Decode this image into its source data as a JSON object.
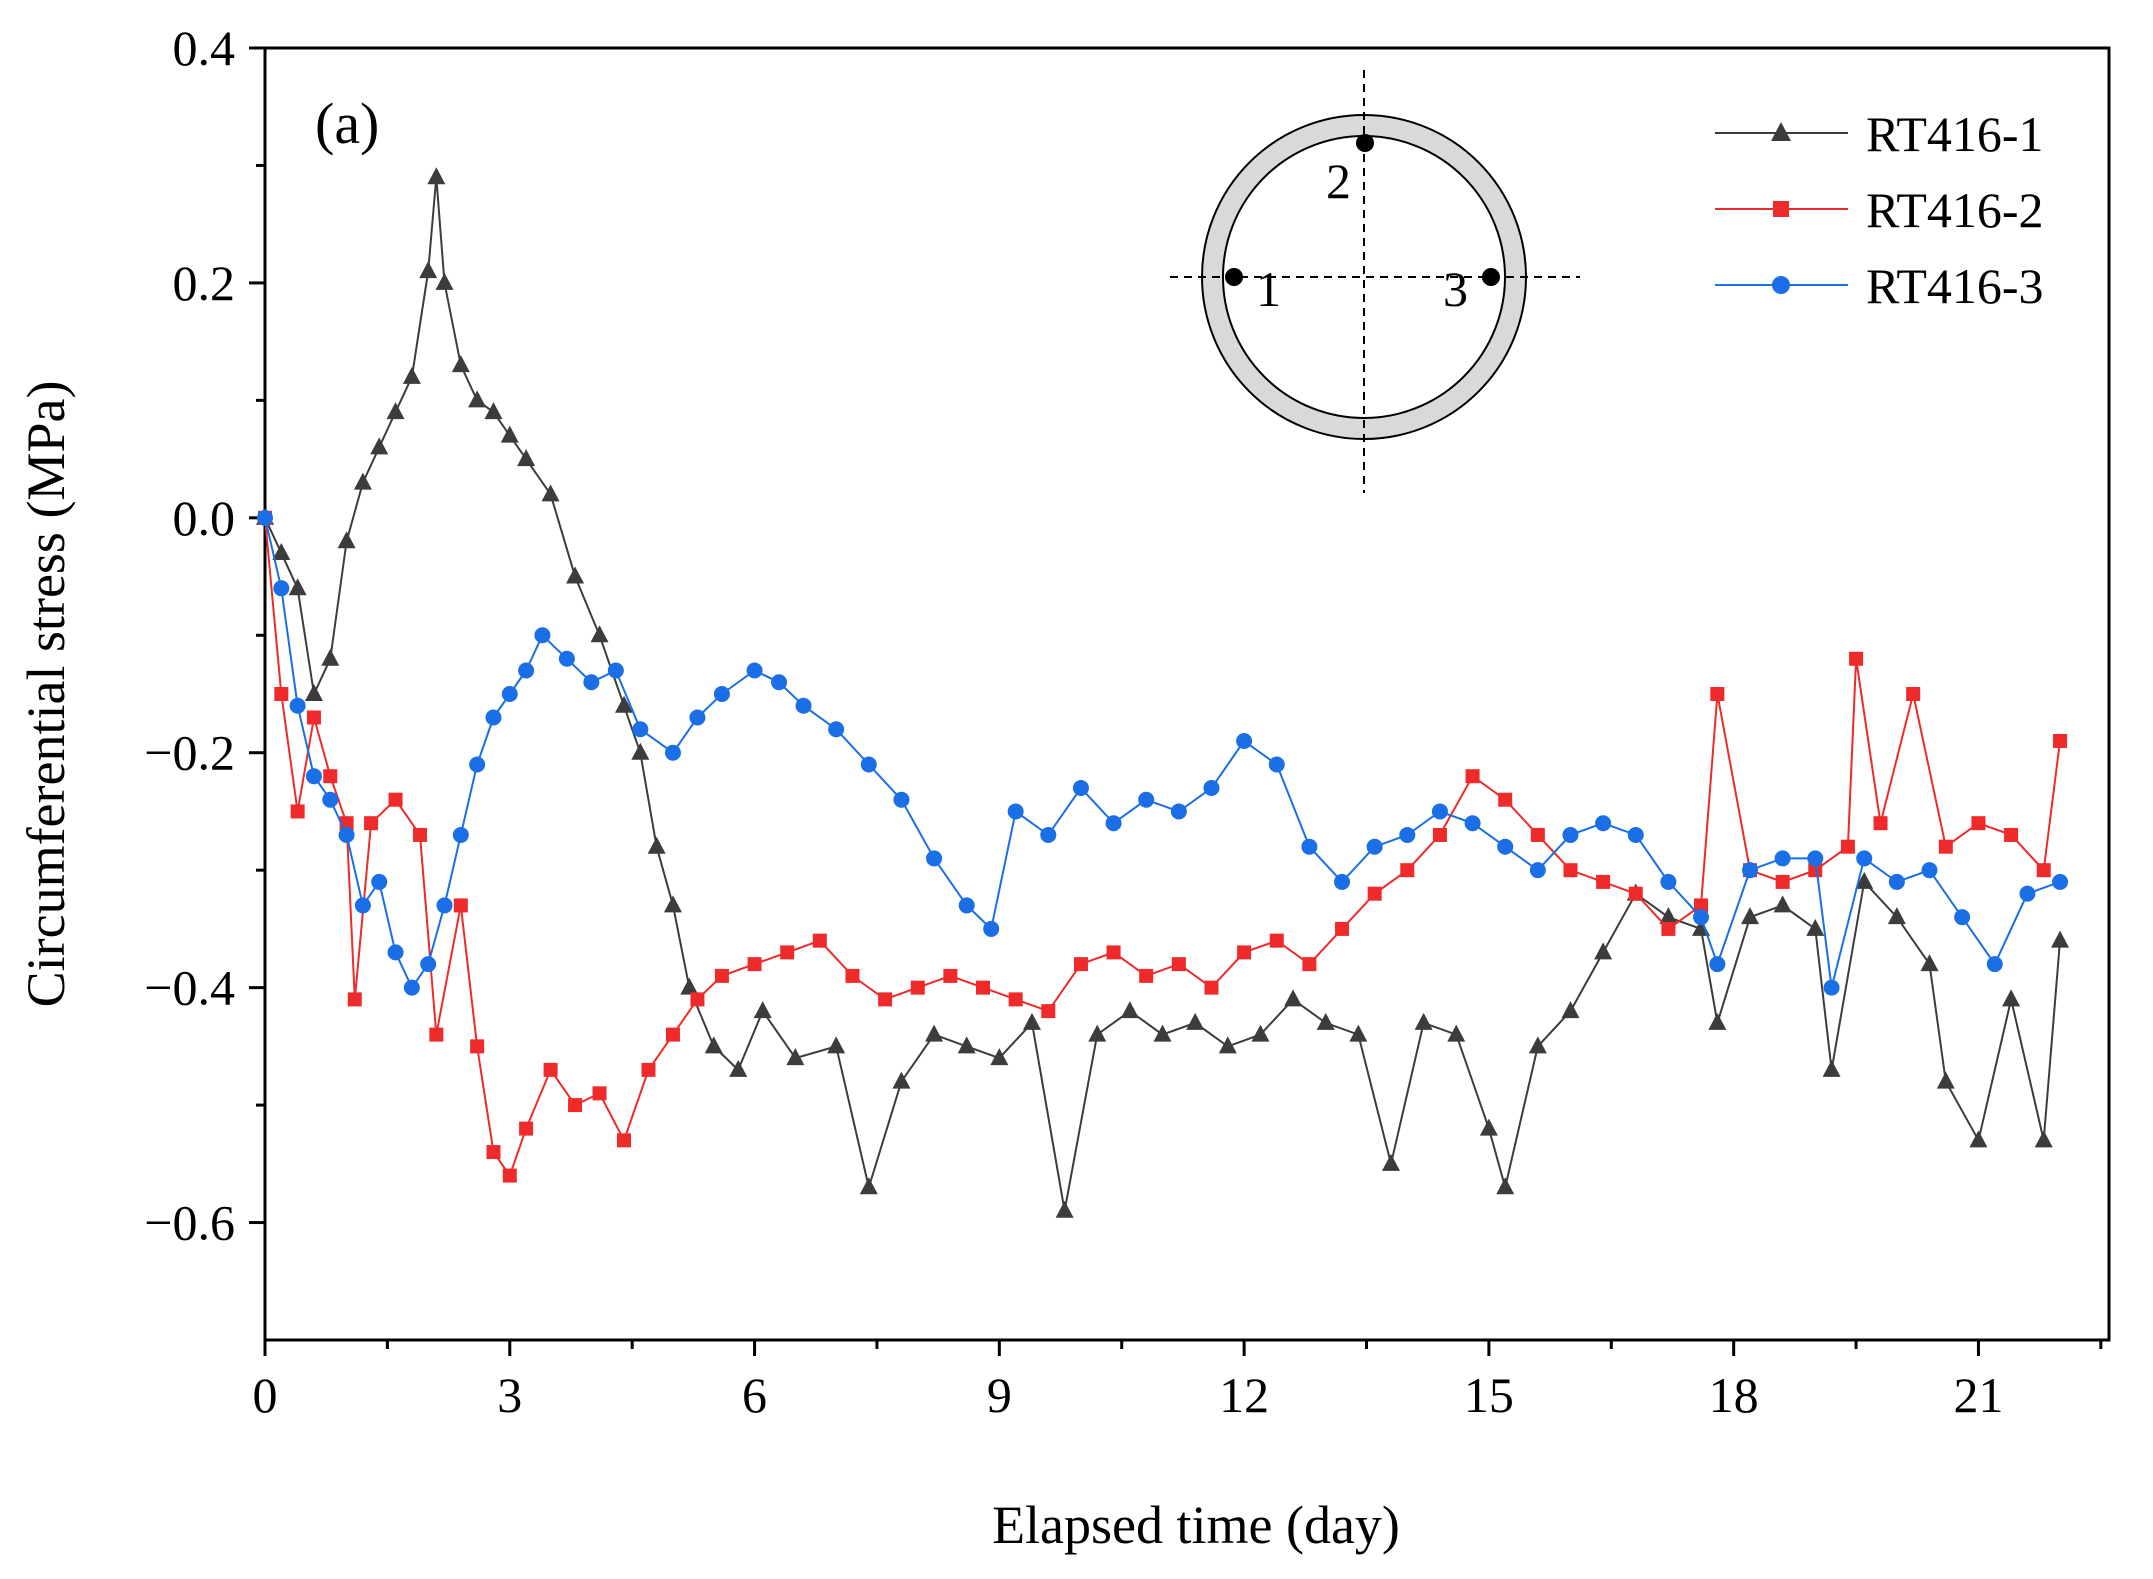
{
  "chart_data": {
    "type": "line",
    "panel_label": "(a)",
    "xlabel": "Elapsed time (day)",
    "ylabel": "Circumferential stress (MPa)",
    "xlim": [
      0,
      22.6
    ],
    "ylim": [
      -0.7,
      0.4
    ],
    "x_ticks": [
      0,
      3,
      6,
      9,
      12,
      15,
      18,
      21
    ],
    "x_tick_labels": [
      "0",
      "3",
      "6",
      "9",
      "12",
      "15",
      "18",
      "21"
    ],
    "y_ticks": [
      0.4,
      0.2,
      0.0,
      -0.2,
      -0.4,
      -0.6
    ],
    "y_tick_labels": [
      "0.4",
      "0.2",
      "0.0",
      "−0.2",
      "−0.4",
      "−0.6"
    ],
    "legend_position": "top-right",
    "inset": {
      "description_labels": [
        "1",
        "2",
        "3"
      ]
    },
    "series": [
      {
        "name": "RT416-1",
        "color": "#3c3c3c",
        "marker": "triangle",
        "points": [
          [
            0.0,
            0.0
          ],
          [
            0.2,
            -0.03
          ],
          [
            0.4,
            -0.06
          ],
          [
            0.6,
            -0.15
          ],
          [
            0.8,
            -0.12
          ],
          [
            1.0,
            -0.02
          ],
          [
            1.2,
            0.03
          ],
          [
            1.4,
            0.06
          ],
          [
            1.6,
            0.09
          ],
          [
            1.8,
            0.12
          ],
          [
            2.0,
            0.21
          ],
          [
            2.1,
            0.29
          ],
          [
            2.2,
            0.2
          ],
          [
            2.4,
            0.13
          ],
          [
            2.6,
            0.1
          ],
          [
            2.8,
            0.09
          ],
          [
            3.0,
            0.07
          ],
          [
            3.2,
            0.05
          ],
          [
            3.5,
            0.02
          ],
          [
            3.8,
            -0.05
          ],
          [
            4.1,
            -0.1
          ],
          [
            4.4,
            -0.16
          ],
          [
            4.6,
            -0.2
          ],
          [
            4.8,
            -0.28
          ],
          [
            5.0,
            -0.33
          ],
          [
            5.2,
            -0.4
          ],
          [
            5.5,
            -0.45
          ],
          [
            5.8,
            -0.47
          ],
          [
            6.1,
            -0.42
          ],
          [
            6.5,
            -0.46
          ],
          [
            7.0,
            -0.45
          ],
          [
            7.4,
            -0.57
          ],
          [
            7.8,
            -0.48
          ],
          [
            8.2,
            -0.44
          ],
          [
            8.6,
            -0.45
          ],
          [
            9.0,
            -0.46
          ],
          [
            9.4,
            -0.43
          ],
          [
            9.8,
            -0.59
          ],
          [
            10.2,
            -0.44
          ],
          [
            10.6,
            -0.42
          ],
          [
            11.0,
            -0.44
          ],
          [
            11.4,
            -0.43
          ],
          [
            11.8,
            -0.45
          ],
          [
            12.2,
            -0.44
          ],
          [
            12.6,
            -0.41
          ],
          [
            13.0,
            -0.43
          ],
          [
            13.4,
            -0.44
          ],
          [
            13.8,
            -0.55
          ],
          [
            14.2,
            -0.43
          ],
          [
            14.6,
            -0.44
          ],
          [
            15.0,
            -0.52
          ],
          [
            15.2,
            -0.57
          ],
          [
            15.6,
            -0.45
          ],
          [
            16.0,
            -0.42
          ],
          [
            16.4,
            -0.37
          ],
          [
            16.8,
            -0.32
          ],
          [
            17.2,
            -0.34
          ],
          [
            17.6,
            -0.35
          ],
          [
            17.8,
            -0.43
          ],
          [
            18.2,
            -0.34
          ],
          [
            18.6,
            -0.33
          ],
          [
            19.0,
            -0.35
          ],
          [
            19.2,
            -0.47
          ],
          [
            19.6,
            -0.31
          ],
          [
            20.0,
            -0.34
          ],
          [
            20.4,
            -0.38
          ],
          [
            20.6,
            -0.48
          ],
          [
            21.0,
            -0.53
          ],
          [
            21.4,
            -0.41
          ],
          [
            21.8,
            -0.53
          ],
          [
            22.0,
            -0.36
          ]
        ]
      },
      {
        "name": "RT416-2",
        "color": "#ee2a2a",
        "marker": "square",
        "points": [
          [
            0.0,
            0.0
          ],
          [
            0.2,
            -0.15
          ],
          [
            0.4,
            -0.25
          ],
          [
            0.6,
            -0.17
          ],
          [
            0.8,
            -0.22
          ],
          [
            1.0,
            -0.26
          ],
          [
            1.1,
            -0.41
          ],
          [
            1.3,
            -0.26
          ],
          [
            1.6,
            -0.24
          ],
          [
            1.9,
            -0.27
          ],
          [
            2.1,
            -0.44
          ],
          [
            2.4,
            -0.33
          ],
          [
            2.6,
            -0.45
          ],
          [
            2.8,
            -0.54
          ],
          [
            3.0,
            -0.56
          ],
          [
            3.2,
            -0.52
          ],
          [
            3.5,
            -0.47
          ],
          [
            3.8,
            -0.5
          ],
          [
            4.1,
            -0.49
          ],
          [
            4.4,
            -0.53
          ],
          [
            4.7,
            -0.47
          ],
          [
            5.0,
            -0.44
          ],
          [
            5.3,
            -0.41
          ],
          [
            5.6,
            -0.39
          ],
          [
            6.0,
            -0.38
          ],
          [
            6.4,
            -0.37
          ],
          [
            6.8,
            -0.36
          ],
          [
            7.2,
            -0.39
          ],
          [
            7.6,
            -0.41
          ],
          [
            8.0,
            -0.4
          ],
          [
            8.4,
            -0.39
          ],
          [
            8.8,
            -0.4
          ],
          [
            9.2,
            -0.41
          ],
          [
            9.6,
            -0.42
          ],
          [
            10.0,
            -0.38
          ],
          [
            10.4,
            -0.37
          ],
          [
            10.8,
            -0.39
          ],
          [
            11.2,
            -0.38
          ],
          [
            11.6,
            -0.4
          ],
          [
            12.0,
            -0.37
          ],
          [
            12.4,
            -0.36
          ],
          [
            12.8,
            -0.38
          ],
          [
            13.2,
            -0.35
          ],
          [
            13.6,
            -0.32
          ],
          [
            14.0,
            -0.3
          ],
          [
            14.4,
            -0.27
          ],
          [
            14.8,
            -0.22
          ],
          [
            15.2,
            -0.24
          ],
          [
            15.6,
            -0.27
          ],
          [
            16.0,
            -0.3
          ],
          [
            16.4,
            -0.31
          ],
          [
            16.8,
            -0.32
          ],
          [
            17.2,
            -0.35
          ],
          [
            17.6,
            -0.33
          ],
          [
            17.8,
            -0.15
          ],
          [
            18.2,
            -0.3
          ],
          [
            18.6,
            -0.31
          ],
          [
            19.0,
            -0.3
          ],
          [
            19.4,
            -0.28
          ],
          [
            19.5,
            -0.12
          ],
          [
            19.8,
            -0.26
          ],
          [
            20.2,
            -0.15
          ],
          [
            20.6,
            -0.28
          ],
          [
            21.0,
            -0.26
          ],
          [
            21.4,
            -0.27
          ],
          [
            21.8,
            -0.3
          ],
          [
            22.0,
            -0.19
          ]
        ]
      },
      {
        "name": "RT416-3",
        "color": "#1a6ee6",
        "marker": "circle",
        "points": [
          [
            0.0,
            0.0
          ],
          [
            0.2,
            -0.06
          ],
          [
            0.4,
            -0.16
          ],
          [
            0.6,
            -0.22
          ],
          [
            0.8,
            -0.24
          ],
          [
            1.0,
            -0.27
          ],
          [
            1.2,
            -0.33
          ],
          [
            1.4,
            -0.31
          ],
          [
            1.6,
            -0.37
          ],
          [
            1.8,
            -0.4
          ],
          [
            2.0,
            -0.38
          ],
          [
            2.2,
            -0.33
          ],
          [
            2.4,
            -0.27
          ],
          [
            2.6,
            -0.21
          ],
          [
            2.8,
            -0.17
          ],
          [
            3.0,
            -0.15
          ],
          [
            3.2,
            -0.13
          ],
          [
            3.4,
            -0.1
          ],
          [
            3.7,
            -0.12
          ],
          [
            4.0,
            -0.14
          ],
          [
            4.3,
            -0.13
          ],
          [
            4.6,
            -0.18
          ],
          [
            5.0,
            -0.2
          ],
          [
            5.3,
            -0.17
          ],
          [
            5.6,
            -0.15
          ],
          [
            6.0,
            -0.13
          ],
          [
            6.3,
            -0.14
          ],
          [
            6.6,
            -0.16
          ],
          [
            7.0,
            -0.18
          ],
          [
            7.4,
            -0.21
          ],
          [
            7.8,
            -0.24
          ],
          [
            8.2,
            -0.29
          ],
          [
            8.6,
            -0.33
          ],
          [
            8.9,
            -0.35
          ],
          [
            9.2,
            -0.25
          ],
          [
            9.6,
            -0.27
          ],
          [
            10.0,
            -0.23
          ],
          [
            10.4,
            -0.26
          ],
          [
            10.8,
            -0.24
          ],
          [
            11.2,
            -0.25
          ],
          [
            11.6,
            -0.23
          ],
          [
            12.0,
            -0.19
          ],
          [
            12.4,
            -0.21
          ],
          [
            12.8,
            -0.28
          ],
          [
            13.2,
            -0.31
          ],
          [
            13.6,
            -0.28
          ],
          [
            14.0,
            -0.27
          ],
          [
            14.4,
            -0.25
          ],
          [
            14.8,
            -0.26
          ],
          [
            15.2,
            -0.28
          ],
          [
            15.6,
            -0.3
          ],
          [
            16.0,
            -0.27
          ],
          [
            16.4,
            -0.26
          ],
          [
            16.8,
            -0.27
          ],
          [
            17.2,
            -0.31
          ],
          [
            17.6,
            -0.34
          ],
          [
            17.8,
            -0.38
          ],
          [
            18.2,
            -0.3
          ],
          [
            18.6,
            -0.29
          ],
          [
            19.0,
            -0.29
          ],
          [
            19.2,
            -0.4
          ],
          [
            19.6,
            -0.29
          ],
          [
            20.0,
            -0.31
          ],
          [
            20.4,
            -0.3
          ],
          [
            20.8,
            -0.34
          ],
          [
            21.2,
            -0.38
          ],
          [
            21.6,
            -0.32
          ],
          [
            22.0,
            -0.31
          ]
        ]
      }
    ]
  }
}
